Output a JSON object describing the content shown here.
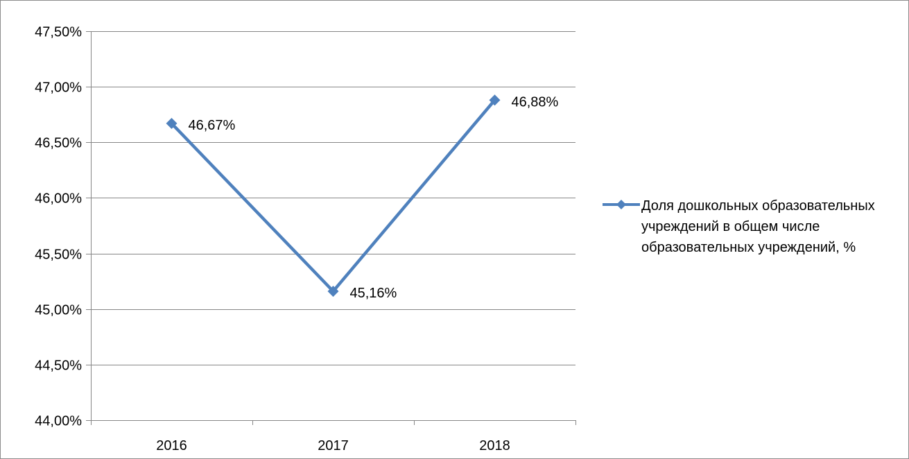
{
  "chart_data": {
    "type": "line",
    "categories": [
      "2016",
      "2017",
      "2018"
    ],
    "series": [
      {
        "name": "Доля дошкольных образовательных учреждений в общем числе образовательных учреждений, %",
        "values": [
          46.67,
          45.16,
          46.88
        ],
        "data_labels": [
          "46,67%",
          "45,16%",
          "46,88%"
        ],
        "color": "#4f81bd"
      }
    ],
    "y_ticks": [
      44.0,
      44.5,
      45.0,
      45.5,
      46.0,
      46.5,
      47.0,
      47.5
    ],
    "y_tick_labels": [
      "44,00%",
      "44,50%",
      "45,00%",
      "45,50%",
      "46,00%",
      "46,50%",
      "47,00%",
      "47,50%"
    ],
    "ylim": [
      44.0,
      47.5
    ],
    "grid": true,
    "legend_position": "right",
    "gridline_color": "#868686",
    "axis_color": "#868686"
  }
}
